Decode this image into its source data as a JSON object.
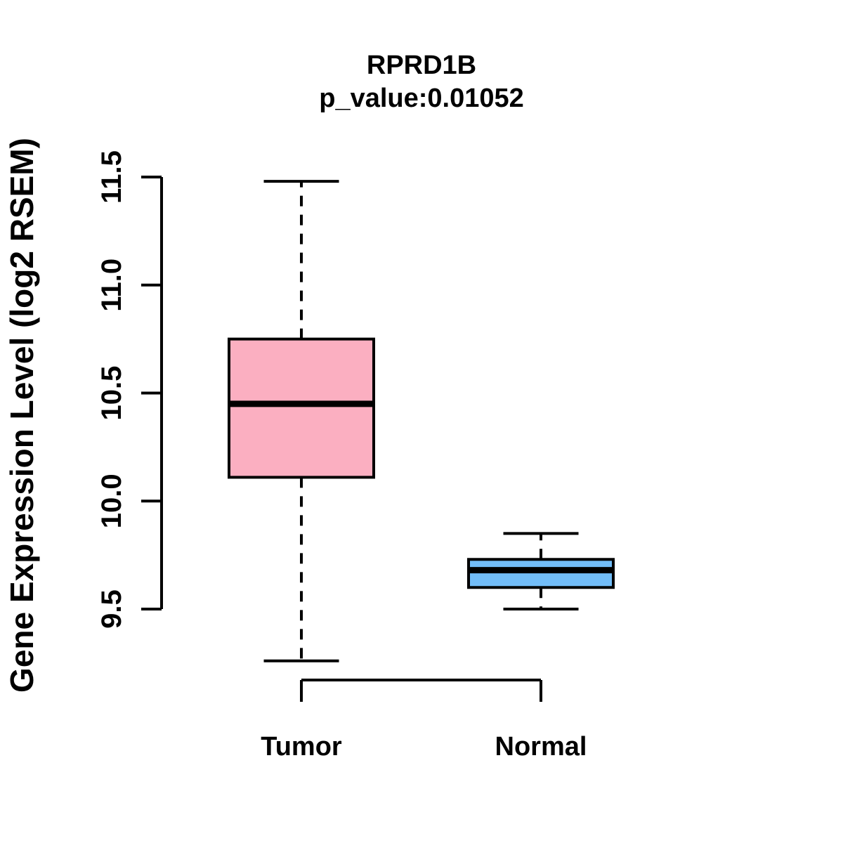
{
  "title": "RPRD1B",
  "subtitle": "p_value:0.01052",
  "chart_data": {
    "type": "boxplot",
    "title": "RPRD1B",
    "subtitle": "p_value:0.01052",
    "p_value": 0.01052,
    "ylabel": "Gene Expression Level (log2 RSEM)",
    "xlabel": "",
    "categories": [
      "Tumor",
      "Normal"
    ],
    "yticks": [
      9.5,
      10.0,
      10.5,
      11.0,
      11.5
    ],
    "ytick_labels": [
      "9.5",
      "10.0",
      "10.5",
      "11.0",
      "11.5"
    ],
    "ylim_axis": [
      9.5,
      11.5
    ],
    "grid": false,
    "legend": "none",
    "series": [
      {
        "name": "Tumor",
        "fill_color": "#FBAFC1",
        "border_color": "#000000",
        "whisker_low": 9.26,
        "q1": 10.11,
        "median": 10.45,
        "q3": 10.75,
        "whisker_high": 11.48
      },
      {
        "name": "Normal",
        "fill_color": "#72BDF8",
        "border_color": "#000000",
        "whisker_low": 9.5,
        "q1": 9.6,
        "median": 9.68,
        "q3": 9.73,
        "whisker_high": 9.85
      }
    ]
  }
}
